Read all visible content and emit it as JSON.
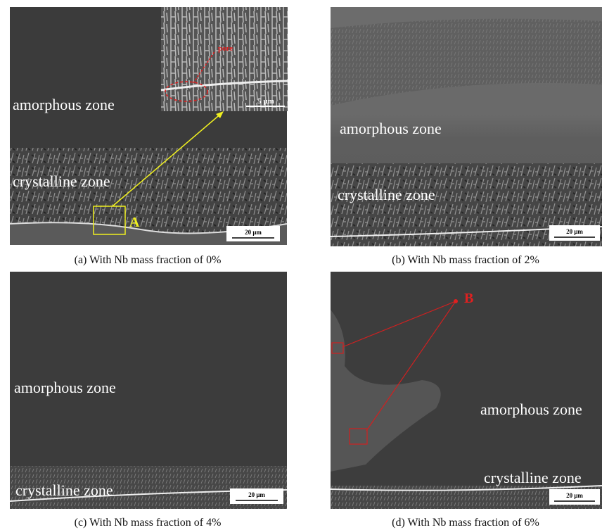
{
  "panels": [
    {
      "caption": "(a)  With Nb mass fraction of 0%",
      "amorphous_label": "amorphous zone",
      "crystalline_label": "crystalline zone",
      "region_label": "A",
      "scale_bar": "20 μm",
      "inset": {
        "label": "pore",
        "scale_bar": "5 μm"
      }
    },
    {
      "caption": "(b)  With Nb mass fraction of 2%",
      "amorphous_label": "amorphous zone",
      "crystalline_label": "crystalline zone",
      "scale_bar": "20 μm"
    },
    {
      "caption": "(c)  With Nb mass fraction of 4%",
      "amorphous_label": "amorphous zone",
      "crystalline_label": "crystalline zone",
      "scale_bar": "20 μm"
    },
    {
      "caption": "(d) With Nb mass fraction of 6%",
      "amorphous_label": "amorphous zone",
      "crystalline_label": "crystalline zone",
      "region_label": "B",
      "scale_bar": "20 μm"
    }
  ]
}
